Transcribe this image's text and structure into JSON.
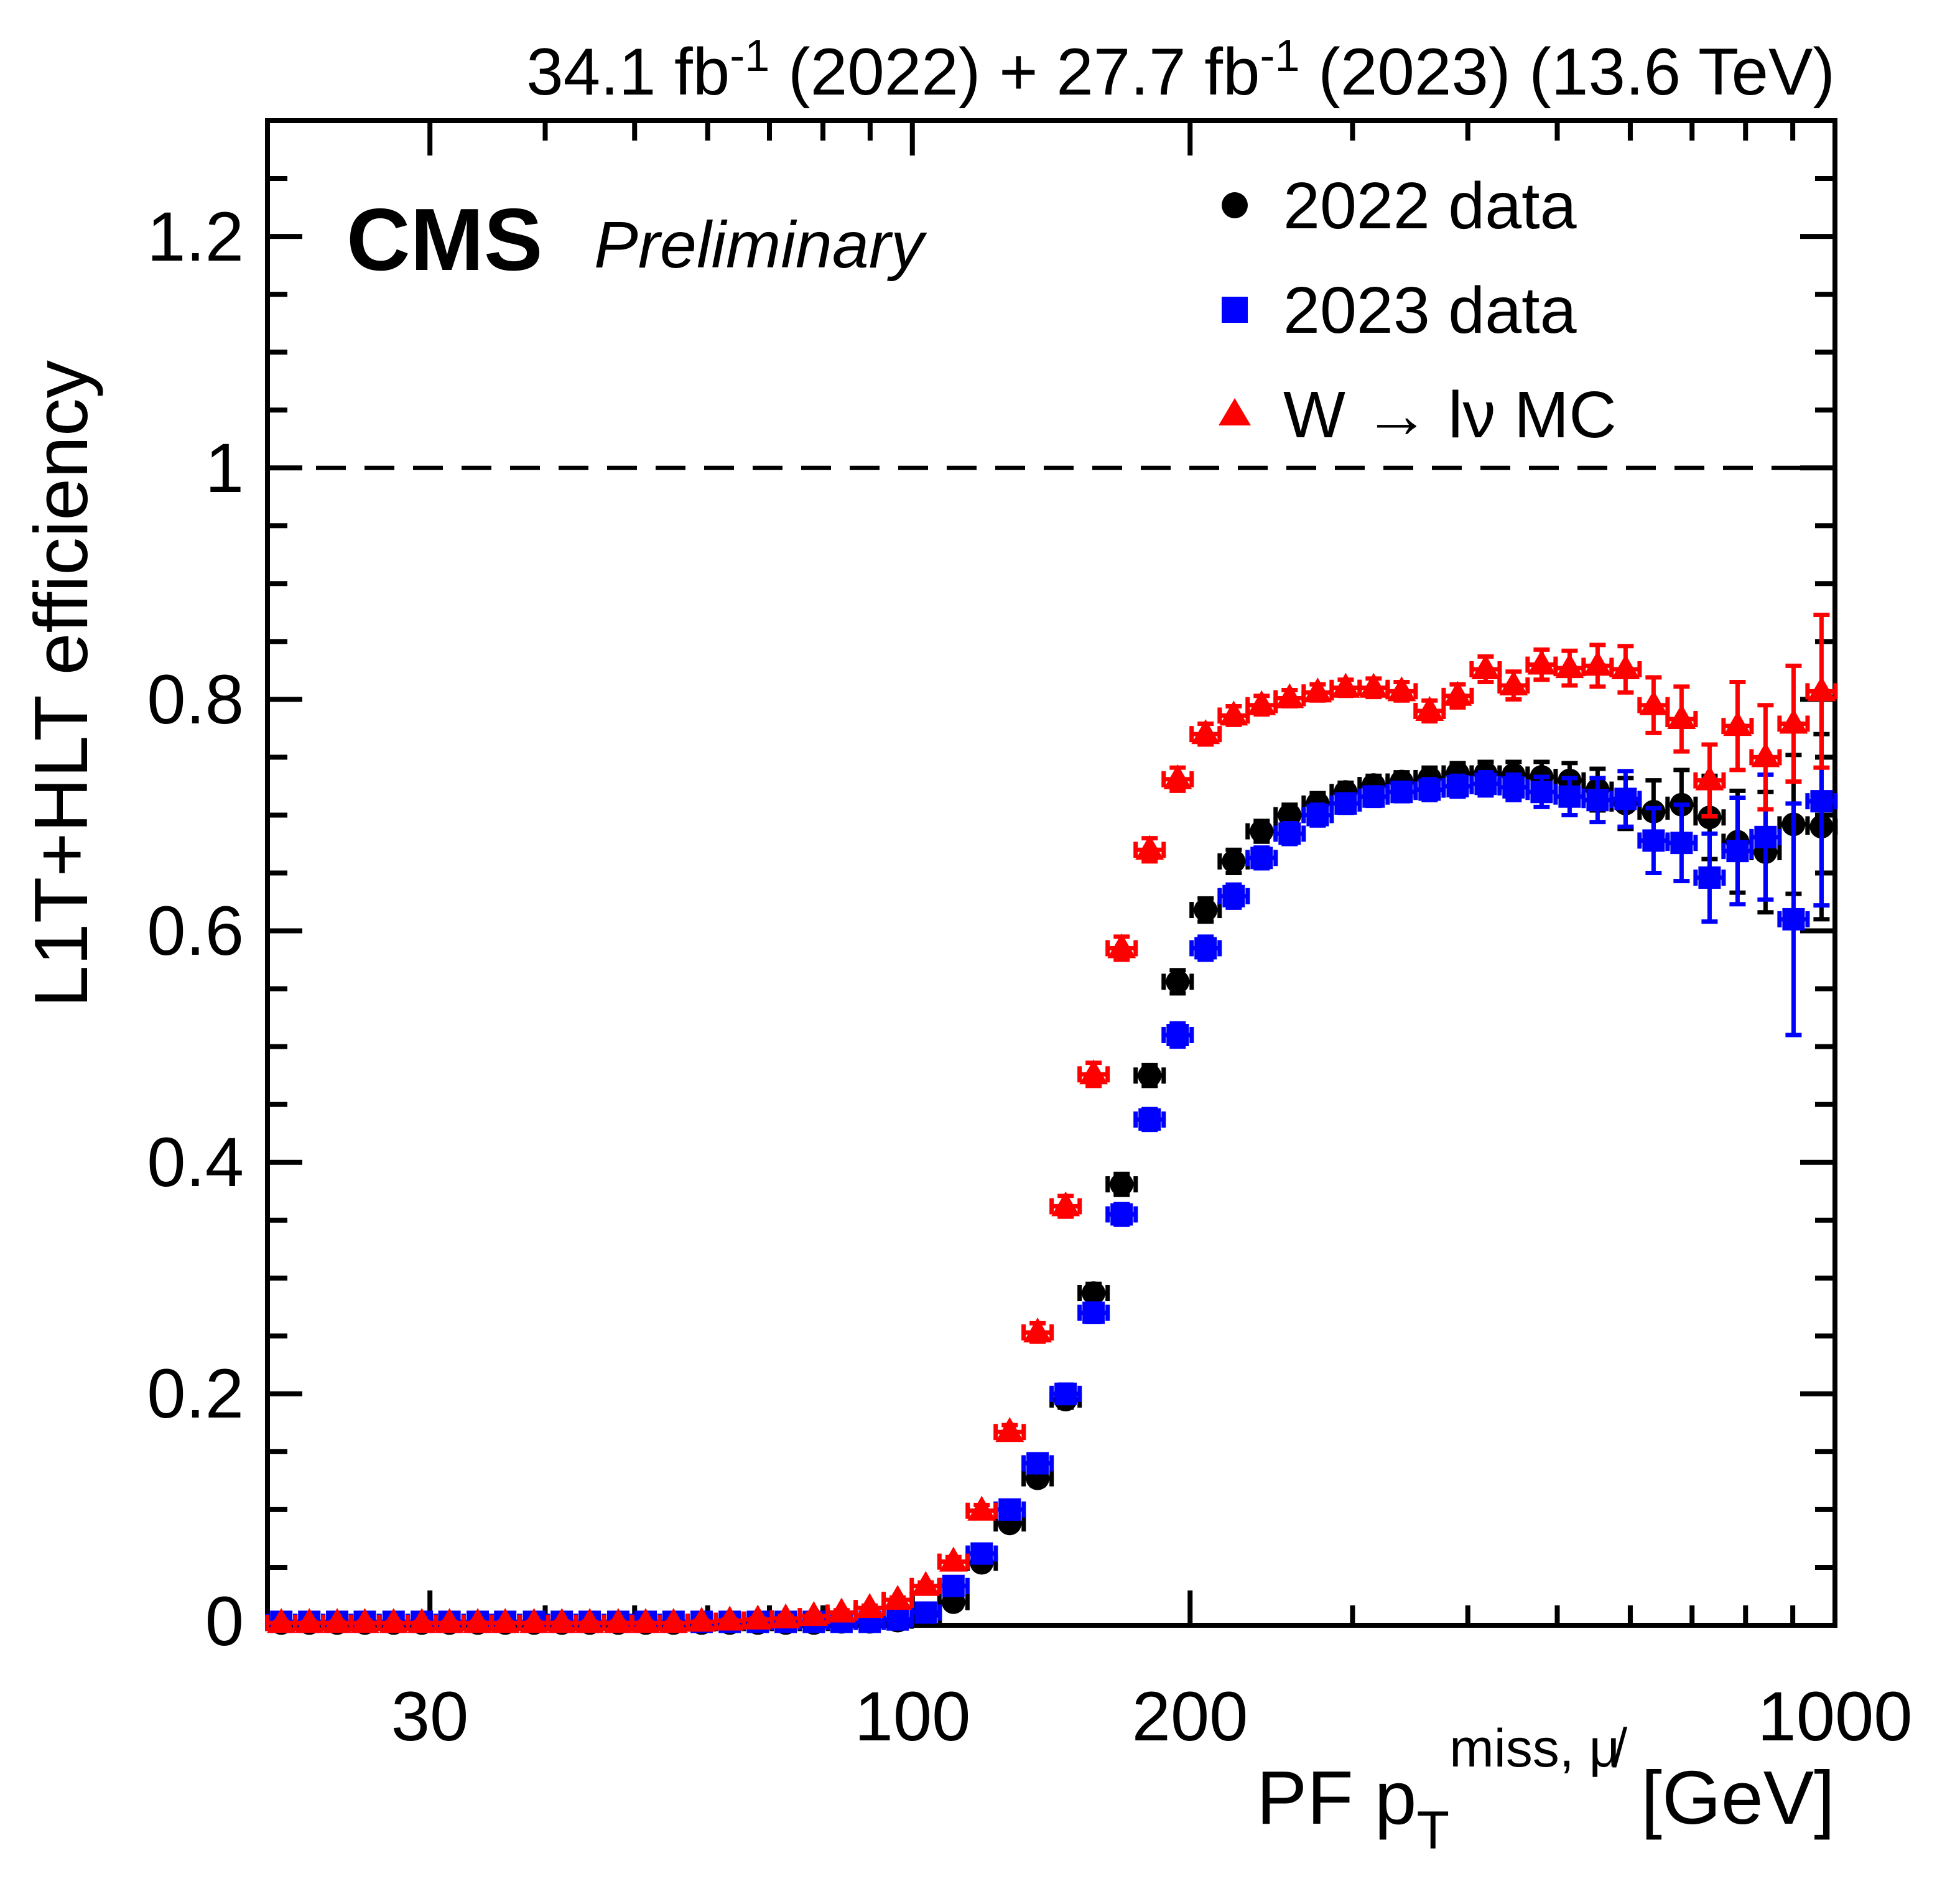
{
  "header": {
    "lumi_part1": "34.1 fb",
    "lumi_sup1": "-1",
    "lumi_part2": " (2022) + 27.7 fb",
    "lumi_sup2": "-1",
    "lumi_part3": " (2023) (13.6 TeV)",
    "experiment": "CMS",
    "preliminary": "Preliminary"
  },
  "chart_data": {
    "type": "scatter",
    "x_scale": "log",
    "xlim": [
      20,
      1000
    ],
    "ylim": [
      0,
      1.3
    ],
    "grid": false,
    "reference_line_y": 1.0,
    "ylabel": "L1T+HLT efficiency",
    "xlabel_parts": {
      "main": "PF p",
      "sub": "T",
      "sup": "miss, μ̸",
      "unit": " [GeV]"
    },
    "x_ticks": [
      {
        "value": 30,
        "label": "30"
      },
      {
        "value": 100,
        "label": "100"
      },
      {
        "value": 200,
        "label": "200"
      },
      {
        "value": 1000,
        "label": "1000"
      }
    ],
    "x_minor_ticks": [
      20,
      40,
      50,
      60,
      70,
      80,
      90,
      300,
      400,
      500,
      600,
      700,
      800,
      900
    ],
    "y_ticks": [
      {
        "value": 0,
        "label": "0"
      },
      {
        "value": 0.2,
        "label": "0.2"
      },
      {
        "value": 0.4,
        "label": "0.4"
      },
      {
        "value": 0.6,
        "label": "0.6"
      },
      {
        "value": 0.8,
        "label": "0.8"
      },
      {
        "value": 1,
        "label": "1"
      },
      {
        "value": 1.2,
        "label": "1.2"
      }
    ],
    "y_minor_step": 0.05,
    "bin_half_width_factor": 1.0356,
    "x": [
      20.7,
      22.2,
      23.8,
      25.5,
      27.4,
      29.4,
      31.5,
      33.8,
      36.2,
      38.9,
      41.7,
      44.7,
      48.0,
      51.4,
      55.1,
      59.1,
      63.4,
      68.0,
      72.9,
      78.2,
      83.8,
      89.9,
      96.4,
      103.4,
      110.8,
      118.9,
      127.5,
      136.7,
      146.6,
      157.2,
      168.6,
      180.8,
      193.9,
      207.9,
      223.0,
      239.1,
      256.4,
      275.0,
      294.9,
      316.2,
      339.1,
      363.6,
      390.0,
      418.2,
      448.4,
      480.9,
      515.7,
      553.0,
      593.0,
      635.9,
      681.9,
      731.3,
      784.2,
      840.9,
      901.8,
      967.0
    ],
    "series": [
      {
        "name": "2022 data",
        "marker": "circle",
        "color": "#000000",
        "y": [
          0.002,
          0.002,
          0.002,
          0.002,
          0.002,
          0.002,
          0.002,
          0.002,
          0.002,
          0.002,
          0.002,
          0.002,
          0.002,
          0.002,
          0.002,
          0.002,
          0.002,
          0.002,
          0.002,
          0.002,
          0.003,
          0.003,
          0.004,
          0.009,
          0.02,
          0.054,
          0.088,
          0.127,
          0.195,
          0.287,
          0.381,
          0.475,
          0.556,
          0.618,
          0.66,
          0.686,
          0.7,
          0.71,
          0.72,
          0.726,
          0.729,
          0.732,
          0.736,
          0.736,
          0.735,
          0.733,
          0.73,
          0.722,
          0.71,
          0.703,
          0.709,
          0.698,
          0.677,
          0.668,
          0.692,
          0.69
        ],
        "ey": [
          0.001,
          0.001,
          0.001,
          0.001,
          0.001,
          0.001,
          0.001,
          0.001,
          0.001,
          0.001,
          0.001,
          0.001,
          0.001,
          0.001,
          0.001,
          0.001,
          0.001,
          0.001,
          0.001,
          0.001,
          0.001,
          0.001,
          0.002,
          0.002,
          0.003,
          0.004,
          0.005,
          0.006,
          0.007,
          0.008,
          0.009,
          0.009,
          0.01,
          0.01,
          0.01,
          0.009,
          0.009,
          0.009,
          0.008,
          0.008,
          0.008,
          0.009,
          0.009,
          0.01,
          0.011,
          0.013,
          0.015,
          0.018,
          0.022,
          0.027,
          0.03,
          0.036,
          0.044,
          0.052,
          0.06,
          0.08
        ]
      },
      {
        "name": "2023 data",
        "marker": "square",
        "color": "#0000ff",
        "y": [
          0.003,
          0.003,
          0.003,
          0.003,
          0.003,
          0.003,
          0.003,
          0.003,
          0.003,
          0.003,
          0.003,
          0.003,
          0.003,
          0.003,
          0.003,
          0.003,
          0.003,
          0.003,
          0.003,
          0.003,
          0.003,
          0.003,
          0.005,
          0.011,
          0.034,
          0.062,
          0.1,
          0.14,
          0.2,
          0.27,
          0.355,
          0.437,
          0.51,
          0.585,
          0.63,
          0.663,
          0.684,
          0.7,
          0.71,
          0.716,
          0.72,
          0.722,
          0.725,
          0.727,
          0.724,
          0.72,
          0.716,
          0.713,
          0.714,
          0.678,
          0.676,
          0.646,
          0.669,
          0.681,
          0.61,
          0.712
        ],
        "ey": [
          0.001,
          0.001,
          0.001,
          0.001,
          0.001,
          0.001,
          0.001,
          0.001,
          0.001,
          0.001,
          0.001,
          0.001,
          0.001,
          0.001,
          0.001,
          0.001,
          0.001,
          0.001,
          0.001,
          0.001,
          0.001,
          0.001,
          0.002,
          0.003,
          0.004,
          0.005,
          0.006,
          0.007,
          0.008,
          0.008,
          0.009,
          0.009,
          0.01,
          0.01,
          0.01,
          0.009,
          0.009,
          0.009,
          0.008,
          0.008,
          0.008,
          0.009,
          0.009,
          0.01,
          0.011,
          0.013,
          0.016,
          0.019,
          0.024,
          0.028,
          0.033,
          0.038,
          0.046,
          0.054,
          0.1,
          0.09
        ]
      },
      {
        "name": "W → lν MC",
        "marker": "triangle",
        "color": "#ff0000",
        "y": [
          0.002,
          0.002,
          0.002,
          0.002,
          0.002,
          0.002,
          0.002,
          0.002,
          0.002,
          0.002,
          0.002,
          0.002,
          0.002,
          0.002,
          0.002,
          0.003,
          0.004,
          0.005,
          0.006,
          0.008,
          0.011,
          0.015,
          0.022,
          0.034,
          0.055,
          0.099,
          0.167,
          0.253,
          0.362,
          0.476,
          0.585,
          0.67,
          0.731,
          0.77,
          0.786,
          0.795,
          0.801,
          0.806,
          0.81,
          0.81,
          0.807,
          0.79,
          0.803,
          0.826,
          0.812,
          0.83,
          0.827,
          0.829,
          0.826,
          0.795,
          0.783,
          0.73,
          0.777,
          0.75,
          0.779,
          0.807
        ],
        "ey": [
          0.001,
          0.001,
          0.001,
          0.001,
          0.001,
          0.001,
          0.001,
          0.001,
          0.001,
          0.001,
          0.001,
          0.001,
          0.001,
          0.001,
          0.001,
          0.001,
          0.001,
          0.001,
          0.002,
          0.002,
          0.002,
          0.002,
          0.002,
          0.003,
          0.004,
          0.005,
          0.006,
          0.008,
          0.009,
          0.01,
          0.01,
          0.01,
          0.01,
          0.009,
          0.008,
          0.008,
          0.007,
          0.007,
          0.007,
          0.008,
          0.008,
          0.009,
          0.01,
          0.011,
          0.012,
          0.013,
          0.015,
          0.018,
          0.02,
          0.024,
          0.028,
          0.031,
          0.038,
          0.045,
          0.05,
          0.066
        ]
      }
    ],
    "legend": [
      {
        "label": "2022 data",
        "marker": "circle",
        "color": "#000000"
      },
      {
        "label": "2023 data",
        "marker": "square",
        "color": "#0000ff"
      },
      {
        "label": "W → lν MC",
        "marker": "triangle",
        "color": "#ff0000"
      }
    ],
    "colors": {
      "data_2022": "#000000",
      "data_2023": "#0000ff",
      "mc": "#ff0000",
      "axis": "#000000"
    }
  }
}
